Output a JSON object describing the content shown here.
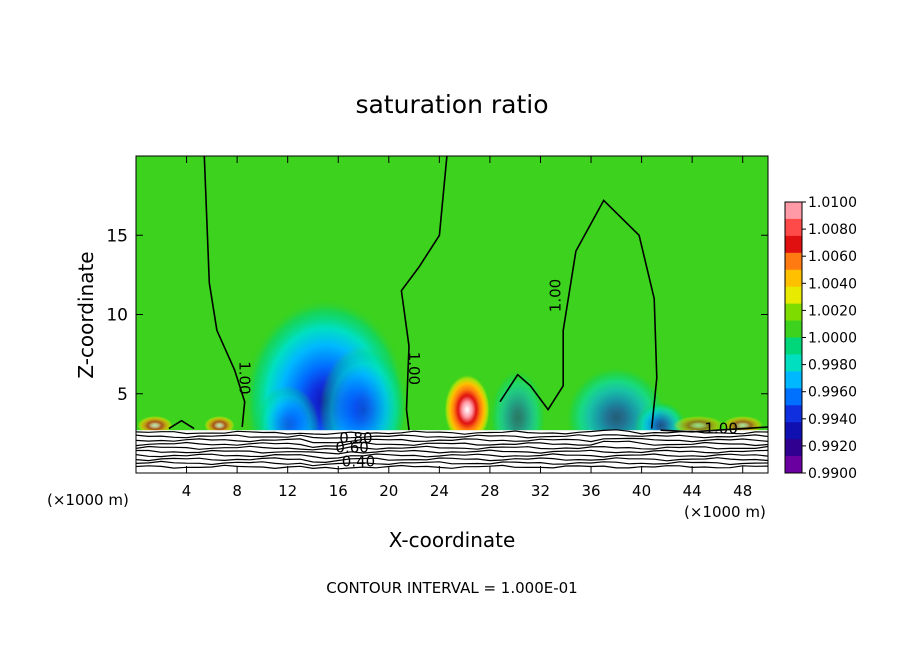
{
  "chart_data": {
    "type": "heatmap",
    "title": "saturation ratio",
    "xlabel": "X-coordinate",
    "ylabel": "Z-coordinate",
    "x_unit": "(×1000 m)",
    "y_unit": "(×1000 m)",
    "xlim": [
      0,
      50
    ],
    "ylim": [
      0,
      20
    ],
    "x_ticks": [
      4,
      8,
      12,
      16,
      20,
      24,
      28,
      32,
      36,
      40,
      44,
      48
    ],
    "y_ticks": [
      5,
      10,
      15
    ],
    "footer": "CONTOUR INTERVAL = 1.000E-01",
    "colorbar": {
      "levels": [
        "1.0100",
        "1.0080",
        "1.0060",
        "1.0040",
        "1.0020",
        "1.0000",
        "0.9980",
        "0.9960",
        "0.9940",
        "0.9920",
        "0.9900"
      ],
      "colors": [
        "#ff9aa6",
        "#ff4a4a",
        "#e01010",
        "#ff7a10",
        "#ffc000",
        "#e8ea00",
        "#7fdc00",
        "#3cd21e",
        "#00d67a",
        "#00e0c0",
        "#00b8ff",
        "#0070ff",
        "#1030e0",
        "#1010b0",
        "#300090",
        "#6a00a0"
      ]
    },
    "contour_labels": [
      {
        "text": "1.00",
        "x": 8.2,
        "z": 6.0,
        "rotate": 90
      },
      {
        "text": "1.00",
        "x": 21.6,
        "z": 6.6,
        "rotate": 90
      },
      {
        "text": "1.00",
        "x": 33.6,
        "z": 11.2,
        "rotate": -90
      },
      {
        "text": "1.00",
        "x": 46.3,
        "z": 2.5,
        "rotate": 0
      },
      {
        "text": "0.80",
        "x": 17.4,
        "z": 1.9,
        "rotate": 0
      },
      {
        "text": "0.60",
        "x": 17.1,
        "z": 1.3,
        "rotate": 0
      },
      {
        "text": "0.40",
        "x": 17.6,
        "z": 0.4,
        "rotate": 0
      }
    ],
    "blobs": [
      {
        "type": "dry",
        "x": 15.0,
        "z": 4.5,
        "rx": 6.5,
        "rz": 6.5,
        "v": -0.95
      },
      {
        "type": "dry",
        "x": 18.0,
        "z": 4.0,
        "rx": 3.5,
        "rz": 4.0,
        "v": -0.5
      },
      {
        "type": "dry",
        "x": 12.0,
        "z": 3.0,
        "rx": 2.5,
        "rz": 2.5,
        "v": -0.4
      },
      {
        "type": "dry",
        "x": 30.2,
        "z": 3.5,
        "rx": 2.2,
        "rz": 3.0,
        "v": -0.4
      },
      {
        "type": "dry",
        "x": 38.0,
        "z": 3.5,
        "rx": 4.0,
        "rz": 3.2,
        "v": -0.55
      },
      {
        "type": "dry",
        "x": 41.5,
        "z": 3.0,
        "rx": 2.0,
        "rz": 1.5,
        "v": -0.6
      },
      {
        "type": "moist",
        "x": 26.2,
        "z": 4.0,
        "rx": 1.8,
        "rz": 2.2,
        "v": 1.0
      },
      {
        "type": "moist",
        "x": 1.5,
        "z": 3.0,
        "rx": 1.4,
        "rz": 0.6,
        "v": 0.6
      },
      {
        "type": "moist",
        "x": 6.6,
        "z": 3.0,
        "rx": 1.2,
        "rz": 0.6,
        "v": 0.6
      },
      {
        "type": "moist",
        "x": 44.5,
        "z": 3.0,
        "rx": 2.0,
        "rz": 0.6,
        "v": 0.4
      },
      {
        "type": "moist",
        "x": 48.0,
        "z": 3.0,
        "rx": 1.6,
        "rz": 0.6,
        "v": 0.5
      }
    ]
  }
}
